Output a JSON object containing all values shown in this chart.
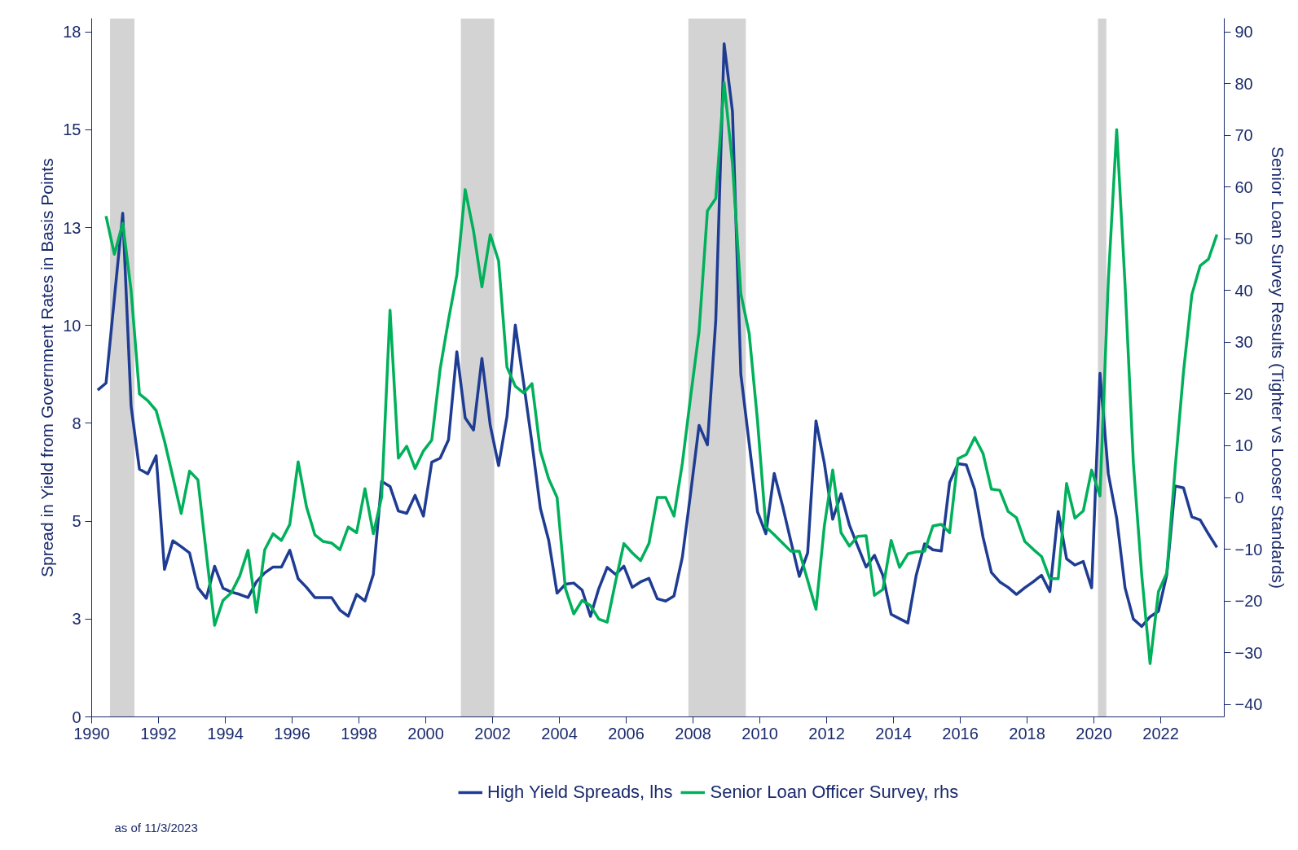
{
  "chart_data": {
    "type": "line",
    "ylabel": "Spread in Yield from Government Rates in Basis Points",
    "y2label": "Senior Loan Survey Results (Tighter vs Looser Standards)",
    "annotations": [
      "as of 11/3/2023"
    ],
    "x": [
      1990.18,
      1990.43,
      1990.68,
      1990.93,
      1991.18,
      1991.43,
      1991.68,
      1991.93,
      1992.18,
      1992.43,
      1992.68,
      1992.93,
      1993.18,
      1993.43,
      1993.68,
      1993.93,
      1994.18,
      1994.43,
      1994.68,
      1994.93,
      1995.18,
      1995.43,
      1995.68,
      1995.93,
      1996.18,
      1996.43,
      1996.68,
      1996.93,
      1997.18,
      1997.43,
      1997.68,
      1997.93,
      1998.18,
      1998.43,
      1998.68,
      1998.93,
      1999.18,
      1999.43,
      1999.68,
      1999.93,
      2000.18,
      2000.43,
      2000.68,
      2000.93,
      2001.18,
      2001.43,
      2001.68,
      2001.93,
      2002.18,
      2002.43,
      2002.68,
      2002.93,
      2003.18,
      2003.43,
      2003.68,
      2003.93,
      2004.18,
      2004.43,
      2004.68,
      2004.93,
      2005.18,
      2005.43,
      2005.68,
      2005.93,
      2006.18,
      2006.43,
      2006.68,
      2006.93,
      2007.18,
      2007.43,
      2007.68,
      2007.93,
      2008.18,
      2008.43,
      2008.68,
      2008.93,
      2009.18,
      2009.43,
      2009.68,
      2009.93,
      2010.18,
      2010.43,
      2010.68,
      2010.93,
      2011.18,
      2011.43,
      2011.68,
      2011.93,
      2012.18,
      2012.43,
      2012.68,
      2012.93,
      2013.18,
      2013.43,
      2013.68,
      2013.93,
      2014.18,
      2014.43,
      2014.68,
      2014.93,
      2015.18,
      2015.43,
      2015.68,
      2015.93,
      2016.18,
      2016.43,
      2016.68,
      2016.93,
      2017.18,
      2017.43,
      2017.68,
      2017.93,
      2018.18,
      2018.43,
      2018.68,
      2018.93,
      2019.18,
      2019.43,
      2019.68,
      2019.93,
      2020.18,
      2020.43,
      2020.68,
      2020.93,
      2021.18,
      2021.43,
      2021.68,
      2021.93,
      2022.18,
      2022.43,
      2022.68,
      2022.93,
      2023.18,
      2023.43,
      2023.68
    ],
    "series": [
      {
        "name": "High Yield Spreads, lhs",
        "color": "#1f3c93",
        "values": [
          8.35,
          8.53,
          10.7,
          12.87,
          7.94,
          6.33,
          6.21,
          6.67,
          3.77,
          4.5,
          4.35,
          4.19,
          3.3,
          3.03,
          3.85,
          3.29,
          3.19,
          3.13,
          3.05,
          3.45,
          3.68,
          3.83,
          3.83,
          4.26,
          3.53,
          3.31,
          3.05,
          3.05,
          3.05,
          2.73,
          2.57,
          3.13,
          2.96,
          3.64,
          6.02,
          5.89,
          5.26,
          5.2,
          5.66,
          5.13,
          6.51,
          6.61,
          7.08,
          9.33,
          7.64,
          7.33,
          9.16,
          7.45,
          6.42,
          7.67,
          10.01,
          8.53,
          6.99,
          5.33,
          4.51,
          3.16,
          3.39,
          3.42,
          3.24,
          2.57,
          3.28,
          3.82,
          3.64,
          3.85,
          3.31,
          3.45,
          3.54,
          3.02,
          2.96,
          3.09,
          4.08,
          5.73,
          7.45,
          6.95,
          10.13,
          17.2,
          15.47,
          8.76,
          6.99,
          5.24,
          4.68,
          6.22,
          5.39,
          4.48,
          3.59,
          4.19,
          7.56,
          6.48,
          5.05,
          5.7,
          4.9,
          4.36,
          3.83,
          4.13,
          3.62,
          2.62,
          2.51,
          2.4,
          3.62,
          4.42,
          4.27,
          4.24,
          5.99,
          6.47,
          6.44,
          5.81,
          4.59,
          3.69,
          3.45,
          3.31,
          3.13,
          3.3,
          3.45,
          3.62,
          3.2,
          5.25,
          4.04,
          3.88,
          3.97,
          3.3,
          8.78,
          6.21,
          5.08,
          3.3,
          2.5,
          2.31,
          2.56,
          2.7,
          3.64,
          5.9,
          5.85,
          5.11,
          5.03,
          4.67,
          4.33
        ]
      },
      {
        "name": "Senior Loan Officer Survey, rhs",
        "color": "#00b05a",
        "axis": "y2",
        "values": [
          null,
          54.4,
          47.0,
          53,
          40,
          20.0,
          18.7,
          16.8,
          10.9,
          4.0,
          -3.1,
          5.1,
          3.4,
          -10.7,
          -24.7,
          -19.9,
          -18.4,
          -15.2,
          -10.2,
          -22.2,
          -10.1,
          -7.0,
          -8.3,
          -5.2,
          6.9,
          -1.8,
          -7.2,
          -8.5,
          -8.8,
          -10.1,
          -5.7,
          -6.8,
          1.7,
          -7.0,
          0.1,
          36.2,
          7.6,
          9.9,
          5.6,
          9.0,
          11.1,
          24.8,
          34.3,
          43,
          59.5,
          51.5,
          40.7,
          50.8,
          45.7,
          25.2,
          21.5,
          20.2,
          22.0,
          9.0,
          3.6,
          0.0,
          -17.6,
          -22.5,
          -19.9,
          -20.9,
          -23.5,
          -24.1,
          -16.3,
          -8.9,
          -10.7,
          -12.2,
          -8.9,
          0.0,
          0.0,
          -3.6,
          6.6,
          19.6,
          32.1,
          55.4,
          57.8,
          80.2,
          64.5,
          39.4,
          31.7,
          14.8,
          -5.7,
          -7.2,
          -8.8,
          -10.4,
          -10.4,
          -16.0,
          -21.6,
          -5.5,
          5.3,
          -6.8,
          -9.4,
          -7.5,
          -7.4,
          -18.9,
          -17.8,
          -8.3,
          -13.5,
          -10.9,
          -10.5,
          -10.4,
          -5.5,
          -5.2,
          -6.8,
          7.5,
          8.3,
          11.6,
          8.5,
          1.6,
          1.4,
          -2.7,
          -3.9,
          -8.5,
          -10.0,
          -11.4,
          -15.7,
          -15.7,
          2.7,
          -4.0,
          -2.6,
          5.3,
          0.3,
          42.0,
          71.1,
          41.2,
          6.6,
          -15.0,
          -32.1,
          -18.2,
          -14.6,
          5.7,
          24.3,
          39.2,
          44.8,
          46.1,
          50.8
        ]
      }
    ],
    "xlim": [
      1990,
      2023.9
    ],
    "xticks": [
      1990,
      1992,
      1994,
      1996,
      1998,
      2000,
      2002,
      2004,
      2006,
      2008,
      2010,
      2012,
      2014,
      2016,
      2018,
      2020,
      2022
    ],
    "ylim": [
      0,
      17.85
    ],
    "yticks": [
      0,
      {
        "value": 2.5,
        "label": "3"
      },
      5,
      {
        "value": 7.5,
        "label": "8"
      },
      10,
      {
        "value": 12.5,
        "label": "13"
      },
      15,
      {
        "value": 17.5,
        "label": "18"
      }
    ],
    "y2lim": [
      -42.4,
      92.6
    ],
    "y2ticks": [
      -40,
      -30,
      -20,
      -10,
      0,
      10,
      20,
      30,
      40,
      50,
      60,
      70,
      80,
      90
    ],
    "bands": [
      {
        "axis": "x",
        "from": 1990.55,
        "to": 1991.28,
        "color": "#d3d3d3"
      },
      {
        "axis": "x",
        "from": 2001.05,
        "to": 2002.05,
        "color": "#d3d3d3"
      },
      {
        "axis": "x",
        "from": 2007.86,
        "to": 2009.58,
        "color": "#d3d3d3"
      },
      {
        "axis": "x",
        "from": 2020.12,
        "to": 2020.37,
        "color": "#d3d3d3"
      }
    ],
    "grid": false,
    "legend": "bottom",
    "marker": "none",
    "line_style": "solid"
  }
}
